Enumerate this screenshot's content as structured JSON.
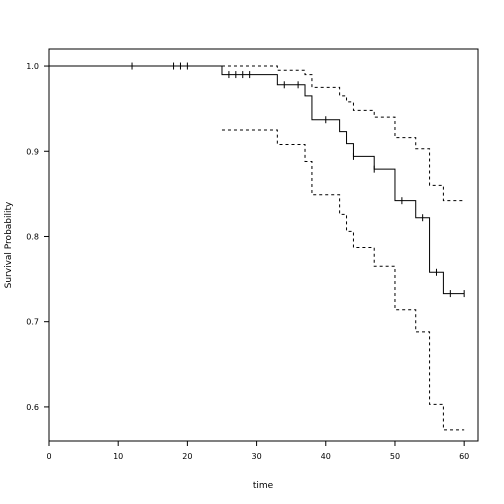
{
  "chart_data": {
    "type": "line",
    "title": "",
    "xlabel": "time",
    "ylabel": "Survival Probability",
    "xlim": [
      0,
      62
    ],
    "ylim": [
      0.56,
      1.02
    ],
    "xticks": [
      0,
      10,
      20,
      30,
      40,
      50,
      60
    ],
    "yticks": [
      0.6,
      0.7,
      0.8,
      0.9,
      1.0
    ],
    "xtick_labels": [
      "0",
      "10",
      "20",
      "30",
      "40",
      "50",
      "60"
    ],
    "ytick_labels": [
      "0.6",
      "0.7",
      "0.8",
      "0.9",
      "1.0"
    ],
    "grid": false,
    "series": [
      {
        "style": "solid",
        "steps": [
          [
            0,
            1.0
          ],
          [
            25,
            0.99
          ],
          [
            33,
            0.978
          ],
          [
            37,
            0.965
          ],
          [
            38,
            0.937
          ],
          [
            42,
            0.923
          ],
          [
            43,
            0.909
          ],
          [
            44,
            0.894
          ],
          [
            47,
            0.879
          ],
          [
            50,
            0.842
          ],
          [
            53,
            0.822
          ],
          [
            55,
            0.758
          ],
          [
            57,
            0.733
          ],
          [
            60,
            0.733
          ]
        ],
        "censor_times": [
          [
            12,
            1.0
          ],
          [
            18,
            1.0
          ],
          [
            19,
            1.0
          ],
          [
            20,
            1.0
          ],
          [
            26,
            0.99
          ],
          [
            27,
            0.99
          ],
          [
            28,
            0.99
          ],
          [
            29,
            0.99
          ],
          [
            34,
            0.978
          ],
          [
            36,
            0.978
          ],
          [
            40,
            0.937
          ],
          [
            44,
            0.894
          ],
          [
            47,
            0.879
          ],
          [
            51,
            0.842
          ],
          [
            54,
            0.822
          ],
          [
            56,
            0.758
          ],
          [
            58,
            0.733
          ],
          [
            60,
            0.733
          ]
        ]
      },
      {
        "style": "dashed",
        "steps": [
          [
            25,
            1.0
          ],
          [
            33,
            0.995
          ],
          [
            37,
            0.99
          ],
          [
            38,
            0.975
          ],
          [
            42,
            0.965
          ],
          [
            43,
            0.958
          ],
          [
            44,
            0.948
          ],
          [
            47,
            0.94
          ],
          [
            50,
            0.916
          ],
          [
            53,
            0.903
          ],
          [
            55,
            0.86
          ],
          [
            57,
            0.842
          ],
          [
            60,
            0.842
          ]
        ]
      },
      {
        "style": "dashed",
        "steps": [
          [
            25,
            0.925
          ],
          [
            33,
            0.908
          ],
          [
            37,
            0.888
          ],
          [
            38,
            0.849
          ],
          [
            42,
            0.826
          ],
          [
            43,
            0.806
          ],
          [
            44,
            0.787
          ],
          [
            47,
            0.765
          ],
          [
            50,
            0.714
          ],
          [
            53,
            0.688
          ],
          [
            55,
            0.603
          ],
          [
            57,
            0.573
          ],
          [
            60,
            0.573
          ]
        ]
      }
    ]
  }
}
